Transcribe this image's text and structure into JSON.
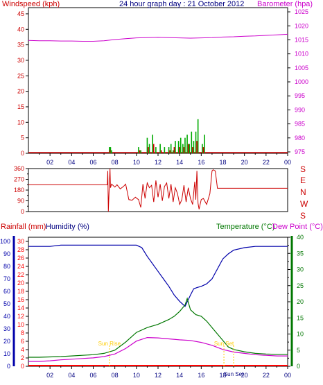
{
  "title": "24 hour graph day : 21 October 2012",
  "colors": {
    "wind": "#cc0000",
    "gust": "#00aa00",
    "baro": "#cc00cc",
    "dir": "#cc0000",
    "humidity": "#0000aa",
    "temp": "#007700",
    "dew": "#cc00cc",
    "rain": "#ff0000",
    "sun": "#ffcc00",
    "axis": "#000000",
    "grid": "#c0c0c0"
  },
  "time_axis": {
    "ticks": [
      "02",
      "04",
      "06",
      "08",
      "10",
      "12",
      "14",
      "16",
      "18",
      "20",
      "22",
      "00"
    ]
  },
  "chart_data": [
    {
      "id": "wind_baro",
      "type": "line",
      "y_left_label": "Windspeed (kph)",
      "y_right_label": "Barometer (hpa)",
      "y_left_ticks": [
        0,
        5,
        10,
        15,
        20,
        25,
        30,
        35,
        40,
        45
      ],
      "y_right_ticks": [
        975,
        980,
        985,
        990,
        995,
        1000,
        1005,
        1010,
        1015,
        1020,
        1025
      ],
      "ylim_left": [
        0,
        47
      ],
      "ylim_right": [
        974.5,
        1026.5
      ],
      "x_range_hours": [
        0,
        24
      ],
      "series": [
        {
          "name": "Barometer",
          "axis": "right",
          "x": [
            0,
            1,
            2,
            3,
            4,
            5,
            6,
            7,
            8,
            9,
            10,
            11,
            12,
            13,
            14,
            15,
            16,
            17,
            18,
            19,
            20,
            21,
            22,
            23,
            24
          ],
          "values": [
            1014.8,
            1014.7,
            1014.7,
            1014.6,
            1014.6,
            1014.5,
            1014.5,
            1014.7,
            1015.1,
            1015.4,
            1015.7,
            1015.8,
            1015.9,
            1015.8,
            1015.7,
            1015.6,
            1015.7,
            1015.8,
            1016.0,
            1016.1,
            1016.3,
            1016.4,
            1016.6,
            1016.8,
            1017.0
          ]
        },
        {
          "name": "Wind gust",
          "axis": "left",
          "type": "bar",
          "x": [
            7.5,
            7.6,
            7.7,
            10.2,
            10.4,
            11.0,
            11.2,
            11.5,
            11.8,
            12.2,
            12.6,
            13.0,
            13.2,
            13.4,
            13.6,
            13.9,
            14.1,
            14.3,
            14.5,
            14.7,
            14.9,
            15.1,
            15.3,
            15.5,
            15.7,
            16.1,
            16.3
          ],
          "values": [
            2,
            2,
            1,
            2,
            1,
            5,
            3,
            6,
            2,
            3,
            2,
            2,
            3,
            1,
            4,
            4,
            5,
            3,
            5,
            6,
            3,
            7,
            4,
            7,
            11,
            3,
            6
          ]
        },
        {
          "name": "Wind speed",
          "axis": "left",
          "type": "bar",
          "x": [
            7.55,
            10.3,
            11.1,
            11.6,
            12.3,
            13.1,
            13.5,
            14.0,
            14.4,
            14.8,
            15.2,
            15.6,
            16.2
          ],
          "values": [
            1,
            1,
            2,
            3,
            1,
            1,
            2,
            2,
            2,
            3,
            2,
            4,
            2
          ]
        }
      ]
    },
    {
      "id": "wind_direction",
      "type": "line",
      "y_left_ticks": [
        0,
        90,
        180,
        270,
        360
      ],
      "y_right_ticks": [
        "E",
        "N",
        "W",
        "S"
      ],
      "y_right_top": "S",
      "ylim_left": [
        0,
        360
      ],
      "series": [
        {
          "name": "Wind direction",
          "x": [
            0,
            7.3,
            7.35,
            7.4,
            7.5,
            7.55,
            7.6,
            7.7,
            8.0,
            8.2,
            8.5,
            8.8,
            9.0,
            9.3,
            9.6,
            9.9,
            10.2,
            10.4,
            10.6,
            10.8,
            11.0,
            11.2,
            11.4,
            11.6,
            11.8,
            12.0,
            12.2,
            12.4,
            12.6,
            12.8,
            13.0,
            13.2,
            13.4,
            13.6,
            13.8,
            14.0,
            14.2,
            14.4,
            14.6,
            14.8,
            15.0,
            15.2,
            15.4,
            15.5,
            15.6,
            15.7,
            15.8,
            16.0,
            16.2,
            16.5,
            16.8,
            17.0,
            17.1,
            17.3,
            17.5,
            24
          ],
          "values": [
            225,
            225,
            340,
            0,
            250,
            360,
            200,
            230,
            205,
            225,
            190,
            210,
            230,
            100,
            95,
            120,
            100,
            35,
            230,
            110,
            240,
            200,
            220,
            80,
            260,
            120,
            230,
            90,
            210,
            240,
            110,
            230,
            80,
            200,
            150,
            60,
            100,
            220,
            80,
            200,
            110,
            60,
            250,
            100,
            340,
            70,
            20,
            100,
            110,
            60,
            150,
            340,
            350,
            340,
            195,
            195
          ]
        }
      ]
    },
    {
      "id": "temp_hum_rain",
      "type": "line",
      "y_left_label": "Rainfall (mm)",
      "y_left2_label": "Humidity (%)",
      "y_right_label": "Temperature (°C)",
      "y_right2_label": "Dew Point (°C)",
      "y_rain_ticks": [
        0,
        2,
        4,
        6,
        8,
        10,
        12,
        14,
        16,
        18,
        20,
        22,
        24,
        26,
        28,
        30
      ],
      "y_hum_ticks": [
        0,
        10,
        20,
        30,
        40,
        50,
        60,
        70,
        80,
        90,
        100
      ],
      "y_temp_ticks": [
        0,
        5,
        10,
        15,
        20,
        25,
        30,
        35,
        40
      ],
      "annotations": [
        {
          "text": "Sun Rise",
          "x_hour": 7.5
        },
        {
          "text": "Sun Set",
          "x_hour": 18.1
        },
        {
          "text": "Sun Set",
          "x_hour": 19.0
        }
      ],
      "series": [
        {
          "name": "Humidity",
          "axis": "humidity",
          "x": [
            0,
            1,
            2,
            3,
            4,
            5,
            6,
            7,
            8,
            9,
            10,
            10.5,
            11,
            11.5,
            12,
            12.5,
            13,
            13.5,
            14,
            14.5,
            15,
            15.3,
            15.6,
            16,
            16.5,
            17,
            17.5,
            18,
            18.5,
            19,
            20,
            21,
            22,
            23,
            24
          ],
          "values": [
            96,
            96,
            96,
            97,
            97,
            97,
            97,
            97,
            97,
            97,
            97,
            95,
            88,
            82,
            76,
            70,
            64,
            57,
            52,
            48,
            57,
            62,
            63,
            64,
            66,
            70,
            78,
            86,
            90,
            93,
            95,
            96,
            96,
            96,
            96
          ]
        },
        {
          "name": "Temperature",
          "axis": "temp",
          "x": [
            0,
            1,
            2,
            3,
            4,
            5,
            6,
            7,
            8,
            9,
            10,
            11,
            12,
            13,
            13.5,
            14,
            14.5,
            14.7,
            15,
            15.5,
            16,
            16.5,
            17,
            17.5,
            18,
            18.5,
            19,
            20,
            21,
            22,
            23,
            24
          ],
          "values": [
            2.8,
            2.8,
            2.9,
            3.0,
            3.2,
            3.4,
            3.6,
            4.0,
            5.0,
            7.5,
            10.5,
            12.0,
            13.0,
            14.5,
            15.5,
            17.0,
            19.0,
            21.0,
            17.5,
            16.0,
            15.5,
            14.0,
            12.0,
            10.0,
            8.0,
            6.0,
            5.2,
            4.5,
            4.0,
            3.8,
            3.7,
            3.7
          ]
        },
        {
          "name": "Dew Point",
          "axis": "temp",
          "x": [
            0,
            1,
            2,
            3,
            4,
            5,
            6,
            7,
            8,
            9,
            10,
            11,
            12,
            13,
            14,
            15,
            16,
            17,
            18,
            19,
            20,
            21,
            22,
            23,
            24
          ],
          "values": [
            1.5,
            1.5,
            1.7,
            2.0,
            2.2,
            2.4,
            2.6,
            3.0,
            3.8,
            5.5,
            7.8,
            8.9,
            8.8,
            8.5,
            8.2,
            8.0,
            7.4,
            6.5,
            5.2,
            4.4,
            4.0,
            3.6,
            3.4,
            3.2,
            3.2
          ]
        },
        {
          "name": "Rainfall",
          "axis": "rain",
          "x": [
            0,
            24
          ],
          "values": [
            0,
            0
          ]
        }
      ]
    }
  ]
}
